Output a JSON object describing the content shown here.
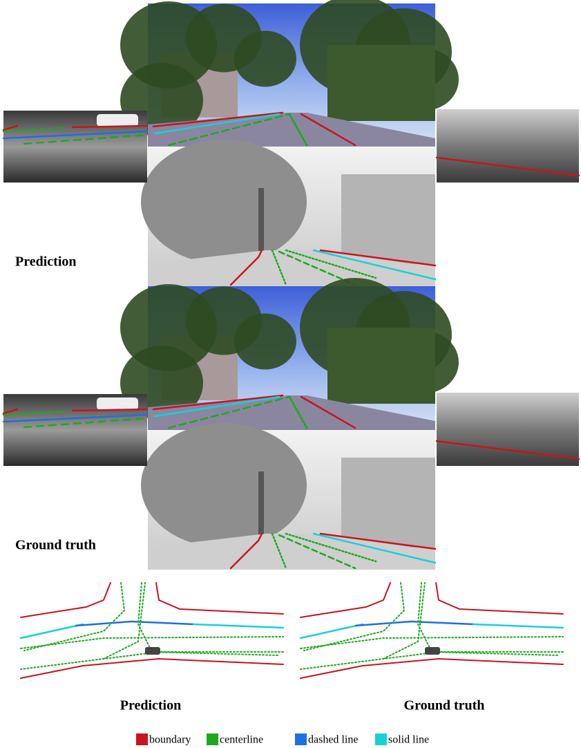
{
  "figure": {
    "camera_panels": [
      {
        "label": "Prediction"
      },
      {
        "label": "Ground truth"
      }
    ],
    "bev_panels": [
      {
        "label": "Prediction"
      },
      {
        "label": "Ground truth"
      }
    ],
    "legend": [
      {
        "label": "boundary",
        "color": "#c8141e"
      },
      {
        "label": "centerline",
        "color": "#1fa81f"
      },
      {
        "label": "dashed line",
        "color": "#1e6fe0"
      },
      {
        "label": "solid line",
        "color": "#19d0d8"
      }
    ]
  }
}
